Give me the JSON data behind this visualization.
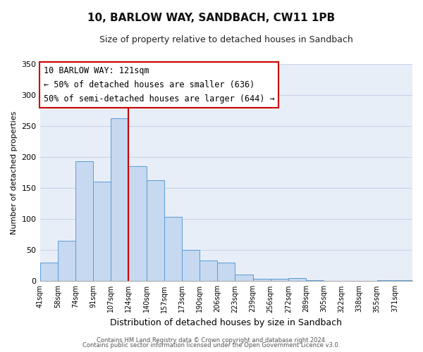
{
  "title": "10, BARLOW WAY, SANDBACH, CW11 1PB",
  "subtitle": "Size of property relative to detached houses in Sandbach",
  "xlabel": "Distribution of detached houses by size in Sandbach",
  "ylabel": "Number of detached properties",
  "bar_labels": [
    "41sqm",
    "58sqm",
    "74sqm",
    "91sqm",
    "107sqm",
    "124sqm",
    "140sqm",
    "157sqm",
    "173sqm",
    "190sqm",
    "206sqm",
    "223sqm",
    "239sqm",
    "256sqm",
    "272sqm",
    "289sqm",
    "305sqm",
    "322sqm",
    "338sqm",
    "355sqm",
    "371sqm"
  ],
  "bar_values": [
    30,
    65,
    193,
    160,
    262,
    185,
    163,
    103,
    50,
    33,
    30,
    11,
    4,
    4,
    5,
    1,
    0,
    0,
    0,
    2,
    1
  ],
  "bar_color": "#c6d9f0",
  "bar_edge_color": "#5b9bd5",
  "grid_color": "#c8d4e8",
  "vline_x": 5,
  "vline_color": "#cc0000",
  "annotation_title": "10 BARLOW WAY: 121sqm",
  "annotation_line1": "← 50% of detached houses are smaller (636)",
  "annotation_line2": "50% of semi-detached houses are larger (644) →",
  "annotation_box_color": "#ffffff",
  "annotation_border_color": "#cc0000",
  "ylim": [
    0,
    350
  ],
  "yticks": [
    0,
    50,
    100,
    150,
    200,
    250,
    300,
    350
  ],
  "footer1": "Contains HM Land Registry data © Crown copyright and database right 2024.",
  "footer2": "Contains public sector information licensed under the Open Government Licence v3.0.",
  "background_color": "#ffffff",
  "plot_background_color": "#e8eef8"
}
